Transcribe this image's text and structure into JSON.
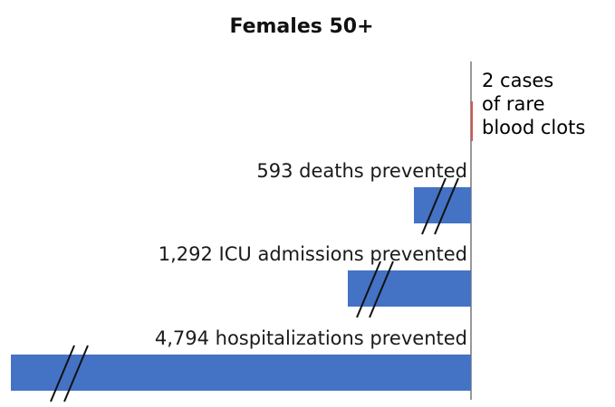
{
  "chart_data": {
    "type": "bar",
    "title": "Females 50+",
    "orientation": "horizontal",
    "note": "Bars shown with axis-break marks (broken bars, not to scale)",
    "categories": [
      "deaths prevented",
      "ICU admissions prevented",
      "hospitalizations prevented"
    ],
    "values": [
      593,
      1292,
      4794
    ],
    "labels": [
      "593 deaths prevented",
      "1,292 ICU admissions prevented",
      "4,794 hospitalizations prevented"
    ],
    "harm": {
      "value": 2,
      "label_lines": [
        "2 cases",
        "of rare",
        "blood clots"
      ]
    },
    "colors": {
      "bars": "#4472c4",
      "harm": "#d9534f",
      "axis": "#555555"
    },
    "xlabel": "",
    "ylabel": ""
  }
}
